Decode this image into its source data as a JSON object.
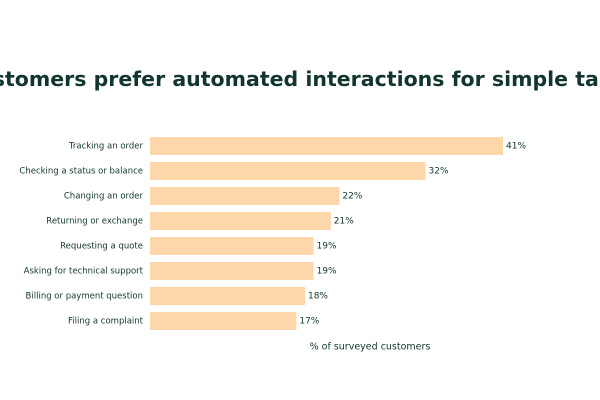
{
  "chart_data": {
    "type": "hbar",
    "title": "Customers prefer automated interactions for simple tasks",
    "x_label": "% of surveyed customers",
    "categories": [
      "Tracking an order",
      "Checking a status or balance",
      "Changing an order",
      "Returning or exchange",
      "Requesting a quote",
      "Asking for technical support",
      "Billing or payment question",
      "Filing a complaint"
    ],
    "values": [
      41,
      32,
      22,
      21,
      19,
      19,
      18,
      17
    ],
    "value_labels": [
      "41%",
      "32%",
      "22%",
      "21%",
      "19%",
      "19%",
      "18%",
      "17%"
    ],
    "color": "#fdd6a9"
  }
}
